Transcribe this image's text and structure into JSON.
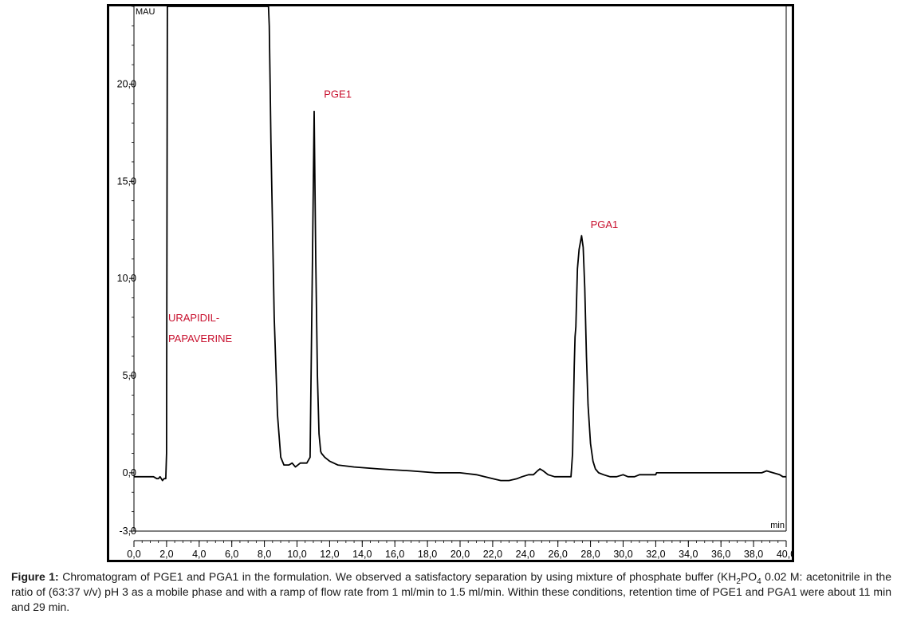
{
  "chart_data": {
    "type": "line",
    "title": "",
    "xlabel": "min",
    "ylabel": "MAU",
    "xlim": [
      0,
      40
    ],
    "ylim": [
      -3,
      24
    ],
    "x_ticks": [
      "0,0",
      "2,0",
      "4,0",
      "6,0",
      "8,0",
      "10,0",
      "12,0",
      "14,0",
      "16,0",
      "18,0",
      "20,0",
      "22,0",
      "24,0",
      "26,0",
      "28,0",
      "30,0",
      "32,0",
      "34,0",
      "36,0",
      "38,0",
      "40,0"
    ],
    "x_tick_values": [
      0,
      2,
      4,
      6,
      8,
      10,
      12,
      14,
      16,
      18,
      20,
      22,
      24,
      26,
      28,
      30,
      32,
      34,
      36,
      38,
      40
    ],
    "y_ticks": [
      "-3,0",
      "0,0",
      "5,0",
      "10,0",
      "15,0",
      "20,0"
    ],
    "y_tick_values": [
      -3,
      0,
      5,
      10,
      15,
      20
    ],
    "grid": false,
    "series": [
      {
        "color": "#000000",
        "x": [
          0.0,
          1.2,
          1.4,
          1.5,
          1.6,
          1.75,
          1.85,
          1.95,
          2.0,
          2.05,
          2.15,
          8.25,
          8.3,
          8.35,
          8.4,
          8.6,
          8.8,
          9.0,
          9.2,
          9.5,
          9.7,
          9.9,
          10.2,
          10.5,
          10.6,
          10.8,
          10.95,
          11.05,
          11.15,
          11.25,
          11.35,
          11.45,
          11.5,
          11.7,
          12.0,
          12.5,
          13.5,
          15.0,
          17.0,
          18.5,
          20.0,
          21.0,
          21.5,
          22.0,
          22.5,
          23.0,
          23.5,
          23.8,
          24.2,
          24.5,
          24.75,
          24.9,
          25.1,
          25.4,
          25.8,
          26.2,
          26.6,
          26.8,
          26.9,
          27.0,
          27.05,
          27.1,
          27.2,
          27.3,
          27.45,
          27.55,
          27.65,
          27.75,
          27.85,
          28.0,
          28.15,
          28.3,
          28.5,
          28.8,
          29.2,
          29.6,
          30.0,
          30.3,
          30.7,
          31.0,
          31.3,
          31.7,
          32.0,
          32.05,
          33.0,
          35.0,
          37.0,
          38.0,
          38.5,
          38.8,
          39.2,
          39.6,
          39.8,
          40.0
        ],
        "y": [
          -0.2,
          -0.2,
          -0.3,
          -0.3,
          -0.2,
          -0.4,
          -0.3,
          -0.3,
          1.0,
          24.0,
          24.0,
          24.0,
          23.0,
          20.0,
          17.0,
          8.0,
          3.0,
          0.8,
          0.4,
          0.4,
          0.5,
          0.3,
          0.5,
          0.5,
          0.5,
          0.8,
          11.0,
          18.6,
          11.0,
          5.0,
          2.0,
          1.1,
          1.0,
          0.8,
          0.6,
          0.4,
          0.3,
          0.2,
          0.1,
          0.0,
          0.0,
          -0.1,
          -0.2,
          -0.3,
          -0.4,
          -0.4,
          -0.3,
          -0.2,
          -0.1,
          -0.1,
          0.1,
          0.2,
          0.1,
          -0.1,
          -0.2,
          -0.2,
          -0.2,
          -0.2,
          1.0,
          5.5,
          7.0,
          7.5,
          10.5,
          11.5,
          12.2,
          11.6,
          9.5,
          6.0,
          3.5,
          1.5,
          0.6,
          0.2,
          0.0,
          -0.1,
          -0.2,
          -0.2,
          -0.1,
          -0.2,
          -0.2,
          -0.1,
          -0.1,
          -0.1,
          -0.1,
          0.0,
          0.0,
          0.0,
          0.0,
          0.0,
          0.0,
          0.1,
          0.0,
          -0.1,
          -0.2,
          -0.2
        ]
      }
    ],
    "annotations": [
      {
        "lines": [
          "URAPIDIL-",
          "PAPAVERINE"
        ],
        "x": 2.1,
        "y": 7.8
      },
      {
        "lines": [
          "PGE1"
        ],
        "x": 11.65,
        "y": 19.3
      },
      {
        "lines": [
          "PGA1"
        ],
        "x": 28.0,
        "y": 12.6
      }
    ]
  },
  "caption": {
    "label": "Figure 1:",
    "text_before": " Chromatogram of PGE1 and PGA1 in the formulation. We observed a satisfactory separation by using mixture of phosphate buffer (KH",
    "sub1": "2",
    "text_mid": "PO",
    "sub2": "4",
    "text_after": " 0.02 M: acetonitrile in the ratio of (63:37 v/v) pH 3 as a mobile phase and with a ramp of flow rate from 1 ml/min to 1.5 ml/min. Within these conditions, retention time of PGE1 and PGA1 were about 11 min and 29 min."
  }
}
